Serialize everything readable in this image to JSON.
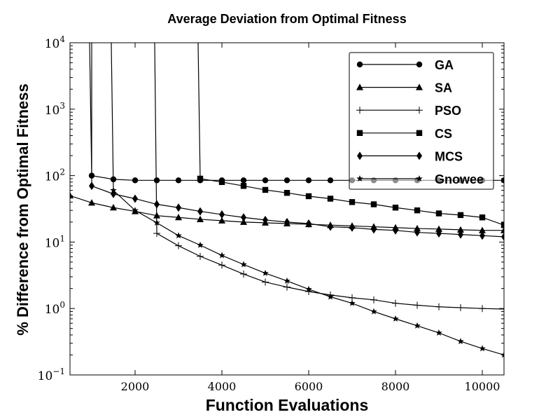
{
  "chart_data": {
    "type": "line",
    "title": "Average Deviation from Optimal Fitness",
    "xlabel": "Function Evaluations",
    "ylabel": "% Difference from Optimal Fitness",
    "xlim": [
      500,
      10500
    ],
    "ylim": [
      0.1,
      10000
    ],
    "yscale": "log",
    "x_ticks": [
      2000,
      4000,
      6000,
      8000,
      10000
    ],
    "y_ticks": [
      {
        "value": 0.1,
        "base": "10",
        "exp": "−1"
      },
      {
        "value": 1,
        "base": "10",
        "exp": "0"
      },
      {
        "value": 10,
        "base": "10",
        "exp": "1"
      },
      {
        "value": 100,
        "base": "10",
        "exp": "2"
      },
      {
        "value": 1000,
        "base": "10",
        "exp": "3"
      },
      {
        "value": 10000,
        "base": "10",
        "exp": "4"
      }
    ],
    "grid": false,
    "legend_position": "top-right",
    "series": [
      {
        "name": "GA",
        "marker": "circle",
        "start": [
          950,
          10000
        ],
        "x": [
          1000,
          1500,
          2000,
          2500,
          3000,
          3500,
          4000,
          4500,
          5000,
          5500,
          6000,
          6500,
          7000,
          7500,
          8000,
          8500,
          9000,
          9500,
          10000,
          10500
        ],
        "y": [
          100,
          88,
          85,
          85,
          85,
          85,
          85,
          85,
          85,
          85,
          85,
          85,
          85,
          85,
          85,
          85,
          85,
          85,
          85,
          85
        ]
      },
      {
        "name": "SA",
        "marker": "triangle",
        "x": [
          500,
          1000,
          1500,
          2000,
          2500,
          3000,
          3500,
          4000,
          4500,
          5000,
          5500,
          6000,
          6500,
          7000,
          7500,
          8000,
          8500,
          9000,
          9500,
          10000,
          10500
        ],
        "y": [
          50,
          39,
          33,
          29,
          25,
          23.5,
          22,
          21,
          20,
          19.5,
          19,
          18.5,
          18,
          17.5,
          17,
          16.5,
          16,
          15.7,
          15.3,
          15,
          15
        ]
      },
      {
        "name": "PSO",
        "marker": "plus",
        "start": [
          2450,
          10000
        ],
        "x": [
          2500,
          3000,
          3500,
          4000,
          4500,
          5000,
          5500,
          6000,
          6500,
          7000,
          7500,
          8000,
          8500,
          9000,
          9500,
          10000,
          10500
        ],
        "y": [
          13.5,
          8.8,
          6.1,
          4.5,
          3.3,
          2.5,
          2.1,
          1.8,
          1.6,
          1.45,
          1.35,
          1.2,
          1.12,
          1.06,
          1.03,
          1.0,
          0.98
        ]
      },
      {
        "name": "CS",
        "marker": "square",
        "start": [
          3450,
          10000
        ],
        "x": [
          3500,
          4000,
          4500,
          5000,
          5500,
          6000,
          6500,
          7000,
          7500,
          8000,
          8500,
          9000,
          9500,
          10000,
          10500
        ],
        "y": [
          90,
          80,
          70,
          61,
          55,
          49,
          45,
          40,
          37,
          33,
          30,
          27,
          25.5,
          23.5,
          18
        ]
      },
      {
        "name": "MCS",
        "marker": "diamond",
        "start": [
          1000,
          10000
        ],
        "x": [
          1000,
          1500,
          2000,
          2500,
          3000,
          3500,
          4000,
          4500,
          5000,
          5500,
          6000,
          6500,
          7000,
          7500,
          8000,
          8500,
          9000,
          9500,
          10000,
          10500
        ],
        "y": [
          70,
          53,
          45,
          37,
          33,
          29,
          26,
          23.5,
          21.5,
          20,
          19,
          17,
          16.5,
          15.5,
          15,
          14,
          13.5,
          13,
          12.5,
          12
        ]
      },
      {
        "name": "Gnowee",
        "marker": "star",
        "start": [
          1450,
          10000
        ],
        "x": [
          1500,
          2000,
          2500,
          3000,
          3500,
          4000,
          4500,
          5000,
          5500,
          6000,
          6500,
          7000,
          7500,
          8000,
          8500,
          9000,
          9500,
          10000,
          10500
        ],
        "y": [
          60,
          30,
          19.5,
          12.5,
          9,
          6.3,
          4.6,
          3.4,
          2.6,
          1.95,
          1.5,
          1.2,
          0.9,
          0.7,
          0.55,
          0.43,
          0.32,
          0.25,
          0.2
        ]
      }
    ]
  }
}
